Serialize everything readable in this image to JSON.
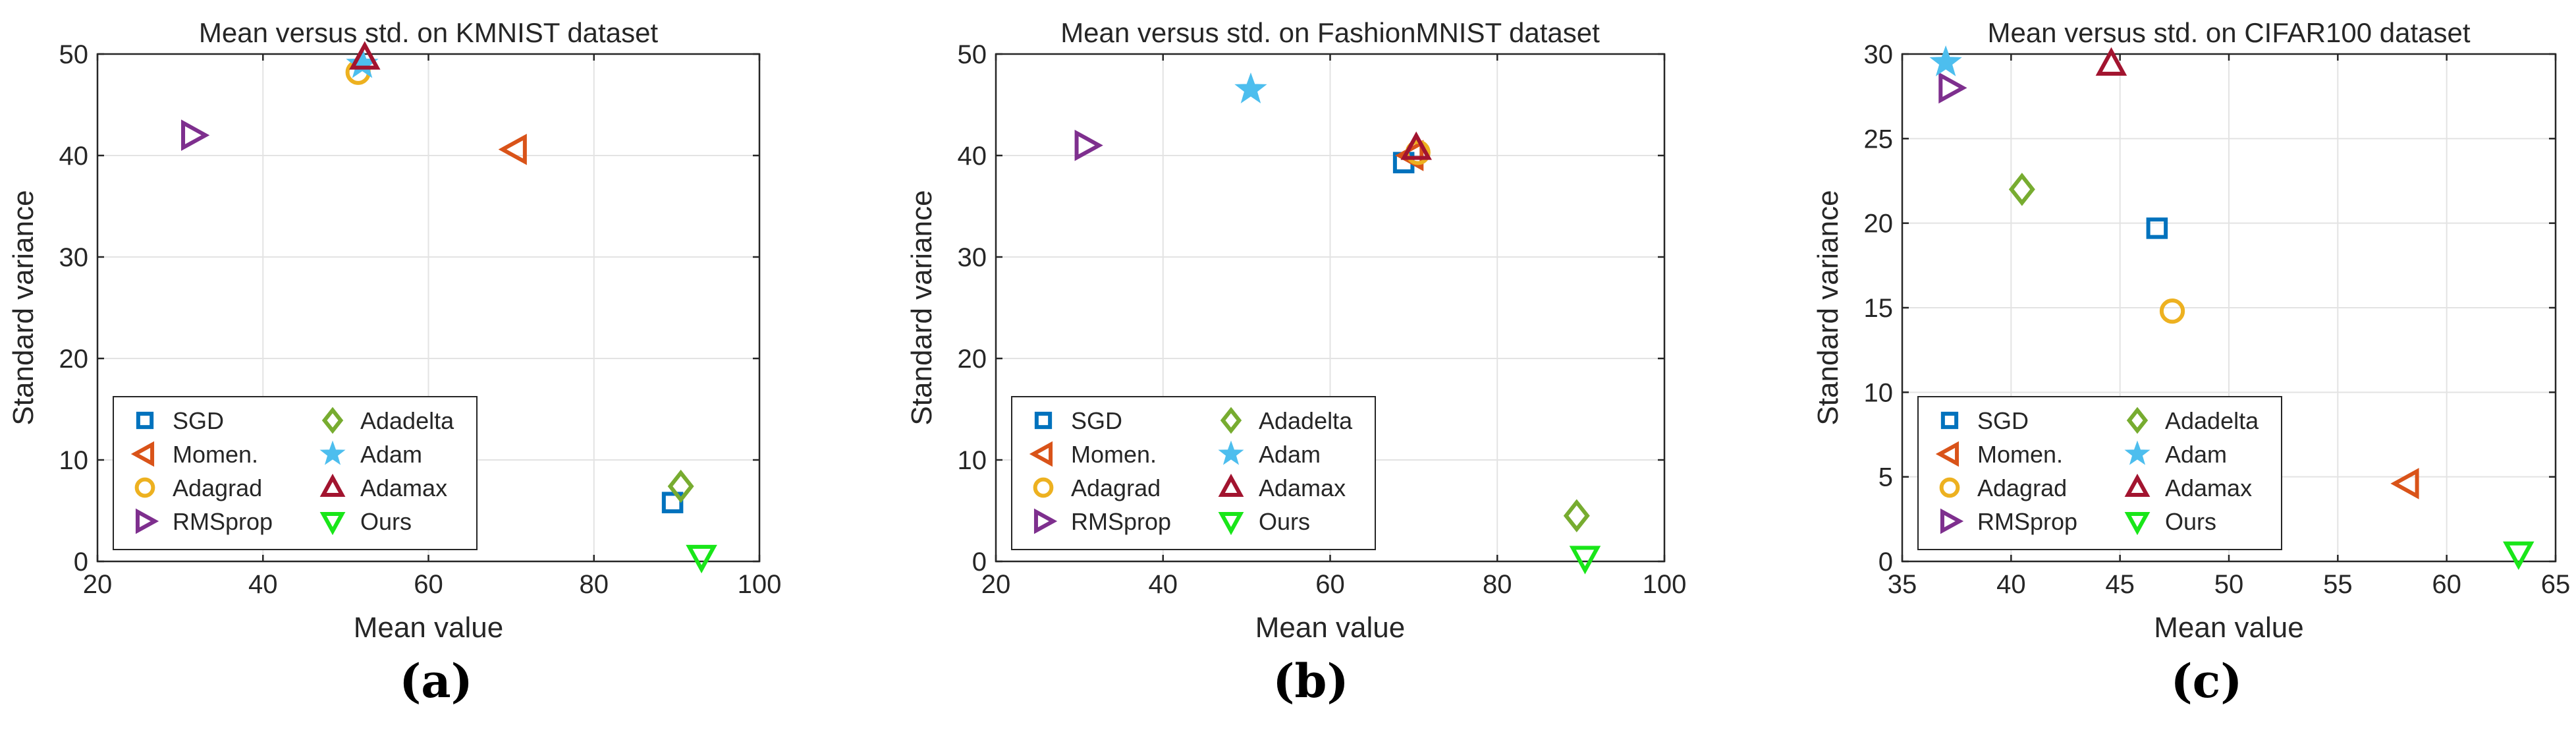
{
  "chart_data": [
    {
      "type": "scatter",
      "title": "Mean versus std. on KMNIST dataset",
      "xlabel": "Mean value",
      "ylabel": "Standard variance",
      "xlim": [
        20,
        100
      ],
      "ylim": [
        0,
        50
      ],
      "xticks": [
        20,
        40,
        60,
        80,
        100
      ],
      "yticks": [
        0,
        10,
        20,
        30,
        40,
        50
      ],
      "grid": true,
      "legend": "lower-left",
      "sublabel": "(a)",
      "series": [
        {
          "name": "SGD",
          "marker": "square",
          "color": "#0072bd",
          "x": 89.5,
          "y": 5.8
        },
        {
          "name": "Momen.",
          "marker": "triangle-left",
          "color": "#d95319",
          "x": 70.5,
          "y": 40.6
        },
        {
          "name": "Adagrad",
          "marker": "circle",
          "color": "#edb120",
          "x": 51.5,
          "y": 48.2
        },
        {
          "name": "RMSprop",
          "marker": "triangle-right",
          "color": "#7e2f8e",
          "x": 31.5,
          "y": 42.0
        },
        {
          "name": "Adadelta",
          "marker": "diamond",
          "color": "#77ac30",
          "x": 90.5,
          "y": 7.4
        },
        {
          "name": "Adam",
          "marker": "star",
          "color": "#4dbeee",
          "x": 52.0,
          "y": 49.0
        },
        {
          "name": "Adamax",
          "marker": "triangle-up",
          "color": "#a2142f",
          "x": 52.3,
          "y": 49.6
        },
        {
          "name": "Ours",
          "marker": "triangle-down",
          "color": "#19e619",
          "x": 93.0,
          "y": 0.5
        }
      ]
    },
    {
      "type": "scatter",
      "title": "Mean versus std. on FashionMNIST dataset",
      "xlabel": "Mean value",
      "ylabel": "Standard variance",
      "xlim": [
        20,
        100
      ],
      "ylim": [
        0,
        50
      ],
      "xticks": [
        20,
        40,
        60,
        80,
        100
      ],
      "yticks": [
        0,
        10,
        20,
        30,
        40,
        50
      ],
      "grid": true,
      "legend": "lower-left",
      "sublabel": "(b)",
      "series": [
        {
          "name": "SGD",
          "marker": "square",
          "color": "#0072bd",
          "x": 68.8,
          "y": 39.3
        },
        {
          "name": "Momen.",
          "marker": "triangle-left",
          "color": "#d95319",
          "x": 69.8,
          "y": 40.0
        },
        {
          "name": "Adagrad",
          "marker": "circle",
          "color": "#edb120",
          "x": 70.5,
          "y": 40.3
        },
        {
          "name": "RMSprop",
          "marker": "triangle-right",
          "color": "#7e2f8e",
          "x": 30.8,
          "y": 41.0
        },
        {
          "name": "Adadelta",
          "marker": "diamond",
          "color": "#77ac30",
          "x": 89.5,
          "y": 4.5
        },
        {
          "name": "Adam",
          "marker": "star",
          "color": "#4dbeee",
          "x": 50.5,
          "y": 46.5
        },
        {
          "name": "Adamax",
          "marker": "triangle-up",
          "color": "#a2142f",
          "x": 70.3,
          "y": 40.7
        },
        {
          "name": "Ours",
          "marker": "triangle-down",
          "color": "#19e619",
          "x": 90.5,
          "y": 0.4
        }
      ]
    },
    {
      "type": "scatter",
      "title": "Mean versus std. on CIFAR100 dataset",
      "xlabel": "Mean value",
      "ylabel": "Standard variance",
      "xlim": [
        35,
        65
      ],
      "ylim": [
        0,
        30
      ],
      "xticks": [
        35,
        40,
        45,
        50,
        55,
        60,
        65
      ],
      "yticks": [
        0,
        5,
        10,
        15,
        20,
        25,
        30
      ],
      "grid": true,
      "legend": "lower-left",
      "sublabel": "(c)",
      "series": [
        {
          "name": "SGD",
          "marker": "square",
          "color": "#0072bd",
          "x": 46.7,
          "y": 19.7
        },
        {
          "name": "Momen.",
          "marker": "triangle-left",
          "color": "#d95319",
          "x": 58.2,
          "y": 4.6
        },
        {
          "name": "Adagrad",
          "marker": "circle",
          "color": "#edb120",
          "x": 47.4,
          "y": 14.8
        },
        {
          "name": "RMSprop",
          "marker": "triangle-right",
          "color": "#7e2f8e",
          "x": 37.2,
          "y": 28.0
        },
        {
          "name": "Adadelta",
          "marker": "diamond",
          "color": "#77ac30",
          "x": 40.5,
          "y": 22.0
        },
        {
          "name": "Adam",
          "marker": "star",
          "color": "#4dbeee",
          "x": 37.0,
          "y": 29.5
        },
        {
          "name": "Adamax",
          "marker": "triangle-up",
          "color": "#a2142f",
          "x": 44.6,
          "y": 29.4
        },
        {
          "name": "Ours",
          "marker": "triangle-down",
          "color": "#19e619",
          "x": 63.3,
          "y": 0.5
        }
      ]
    }
  ]
}
